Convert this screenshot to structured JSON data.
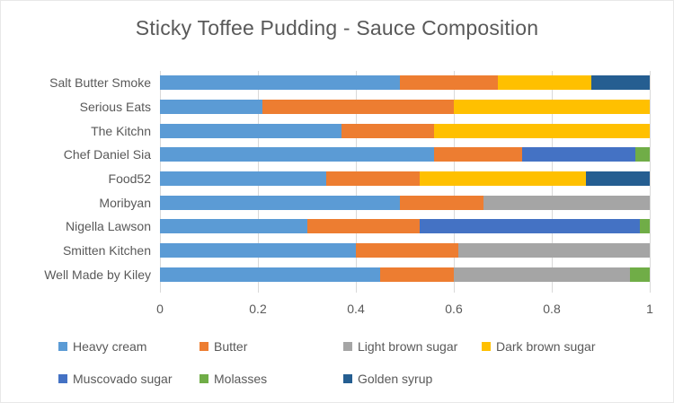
{
  "chart_data": {
    "type": "bar",
    "orientation": "horizontal-stacked",
    "title": "Sticky Toffee Pudding - Sauce Composition",
    "categories": [
      "Salt Butter Smoke",
      "Serious Eats",
      "The Kitchn",
      "Chef Daniel Sia",
      "Food52",
      "Moribyan",
      "Nigella Lawson",
      "Smitten Kitchen",
      "Well Made by Kiley"
    ],
    "series": [
      {
        "name": "Heavy cream",
        "color": "#5B9BD5",
        "values": [
          0.49,
          0.21,
          0.37,
          0.56,
          0.34,
          0.49,
          0.3,
          0.4,
          0.45
        ]
      },
      {
        "name": "Butter",
        "color": "#ED7D31",
        "values": [
          0.2,
          0.39,
          0.19,
          0.18,
          0.19,
          0.17,
          0.23,
          0.21,
          0.15
        ]
      },
      {
        "name": "Light brown sugar",
        "color": "#A5A5A5",
        "values": [
          0,
          0,
          0,
          0,
          0,
          0.34,
          0,
          0.39,
          0.36
        ]
      },
      {
        "name": "Dark brown sugar",
        "color": "#FFC000",
        "values": [
          0.19,
          0.4,
          0.44,
          0,
          0.34,
          0,
          0,
          0,
          0
        ]
      },
      {
        "name": "Muscovado sugar",
        "color": "#4472C4",
        "values": [
          0,
          0,
          0,
          0.23,
          0,
          0,
          0.45,
          0,
          0
        ]
      },
      {
        "name": "Molasses",
        "color": "#70AD47",
        "values": [
          0,
          0,
          0,
          0.03,
          0,
          0,
          0.02,
          0,
          0.04
        ]
      },
      {
        "name": "Golden syrup",
        "color": "#255E91",
        "values": [
          0.12,
          0,
          0,
          0,
          0.13,
          0,
          0,
          0,
          0
        ]
      }
    ],
    "x_ticks": [
      "0",
      "0.2",
      "0.4",
      "0.6",
      "0.8",
      "1"
    ],
    "xlim": [
      0,
      1
    ],
    "grid": true,
    "legend_position": "bottom",
    "gridline_color": "#D9D9D9",
    "text_color": "#595959"
  }
}
